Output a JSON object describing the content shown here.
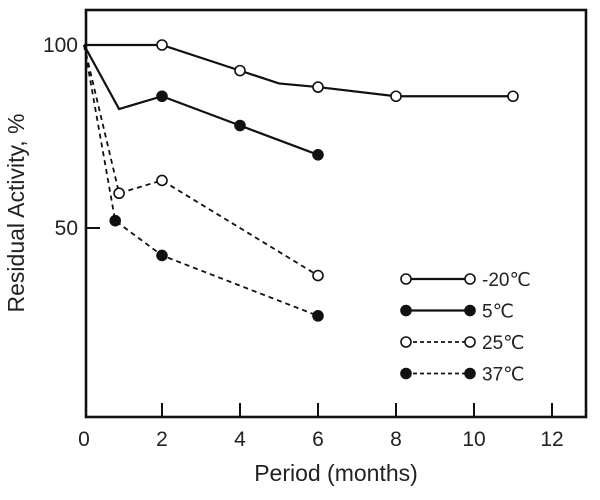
{
  "chart_data": {
    "type": "line",
    "xlabel": "Period (months)",
    "ylabel": "Residual Activity, %",
    "xlim": [
      0,
      13
    ],
    "ylim": [
      0,
      105
    ],
    "x_ticks": [
      0,
      2,
      4,
      6,
      8,
      10,
      12
    ],
    "y_ticks": [
      50,
      100
    ],
    "grid": false,
    "legend_position": "bottom-right",
    "series": [
      {
        "name": "-20℃",
        "line": "solid",
        "marker": "open",
        "points": [
          [
            0,
            100
          ],
          [
            2,
            100
          ],
          [
            4,
            93
          ],
          [
            5,
            89.5
          ],
          [
            6,
            88.5
          ],
          [
            8,
            86
          ],
          [
            11,
            86
          ]
        ],
        "marker_points": [
          [
            2,
            100
          ],
          [
            4,
            93
          ],
          [
            6,
            88.5
          ],
          [
            8,
            86
          ],
          [
            11,
            86
          ]
        ]
      },
      {
        "name": "5℃",
        "line": "solid",
        "marker": "filled",
        "points": [
          [
            0,
            100
          ],
          [
            0.9,
            82.5
          ],
          [
            2,
            86
          ],
          [
            4,
            78
          ],
          [
            6,
            70
          ]
        ],
        "marker_points": [
          [
            2,
            86
          ],
          [
            4,
            78
          ],
          [
            6,
            70
          ]
        ]
      },
      {
        "name": "25℃",
        "line": "dashed",
        "marker": "open",
        "points": [
          [
            0,
            100
          ],
          [
            0.9,
            59.5
          ],
          [
            2,
            63
          ],
          [
            6,
            37
          ]
        ],
        "marker_points": [
          [
            0.9,
            59.5
          ],
          [
            2,
            63
          ],
          [
            6,
            37
          ]
        ]
      },
      {
        "name": "37℃",
        "line": "dashed",
        "marker": "filled",
        "points": [
          [
            0,
            100
          ],
          [
            0.8,
            52
          ],
          [
            2,
            42.5
          ],
          [
            6,
            26
          ]
        ],
        "marker_points": [
          [
            0.8,
            52
          ],
          [
            2,
            42.5
          ],
          [
            6,
            26
          ]
        ]
      }
    ]
  }
}
